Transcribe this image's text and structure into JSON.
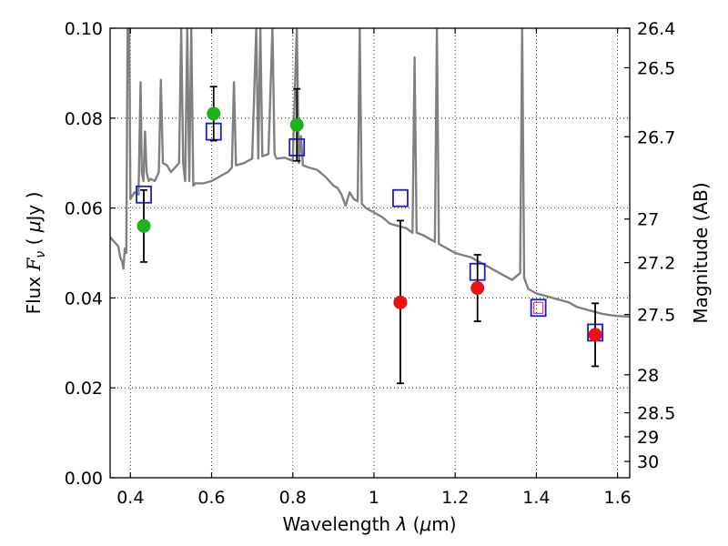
{
  "chart_data": {
    "type": "scatter",
    "xlabel": {
      "prefix": "Wavelength  ",
      "symbol": "λ",
      "unit_open": " (",
      "unit_mu": "μ",
      "unit_rest": "m)"
    },
    "ylabel": {
      "prefix": "Flux  ",
      "symbol": "F",
      "subscript": "ν",
      "unit_open": " ( ",
      "unit_mu": "μ",
      "unit_rest": "Jy )"
    },
    "y2label": "Magnitude (AB)",
    "xlim": [
      0.35,
      1.63
    ],
    "ylim": [
      0.0,
      0.1
    ],
    "x_ticks": [
      0.4,
      0.6,
      0.8,
      1.0,
      1.2,
      1.4,
      1.6
    ],
    "x_tick_labels": [
      "0.4",
      "0.6",
      "0.8",
      "1",
      "1.2",
      "1.4",
      "1.6"
    ],
    "y_ticks": [
      0.0,
      0.02,
      0.04,
      0.06,
      0.08,
      0.1
    ],
    "y_tick_labels": [
      "0.00",
      "0.02",
      "0.04",
      "0.06",
      "0.08",
      "0.10"
    ],
    "y2_ticks": [
      26.4,
      26.5,
      26.7,
      27,
      27.2,
      27.5,
      28,
      28.5,
      29,
      30
    ],
    "y2_tick_labels": [
      "26.4",
      "26.5",
      "26.7",
      "27",
      "27.2",
      "27.5",
      "28",
      "28.5",
      "29",
      "30"
    ],
    "grid": true,
    "colors": {
      "model": "#808080",
      "green_points": "#1db31d",
      "red_points": "#ee1111",
      "model_squares": "#1a1ad8",
      "errorbars": "#000000",
      "inner_square": "#cc2244"
    },
    "series": [
      {
        "kind": "line",
        "points": [
          [
            0.35,
            0.0535
          ],
          [
            0.36,
            0.0525
          ],
          [
            0.37,
            0.0515
          ],
          [
            0.375,
            0.049
          ],
          [
            0.38,
            0.048
          ],
          [
            0.383,
            0.0465
          ],
          [
            0.386,
            0.051
          ],
          [
            0.39,
            0.05
          ],
          [
            0.393,
            0.1
          ],
          [
            0.397,
            0.1
          ],
          [
            0.4,
            0.062
          ],
          [
            0.41,
            0.0635
          ],
          [
            0.42,
            0.063
          ],
          [
            0.425,
            0.088
          ],
          [
            0.428,
            0.068
          ],
          [
            0.432,
            0.066
          ],
          [
            0.436,
            0.077
          ],
          [
            0.44,
            0.068
          ],
          [
            0.445,
            0.066
          ],
          [
            0.45,
            0.0665
          ],
          [
            0.46,
            0.066
          ],
          [
            0.47,
            0.068
          ],
          [
            0.475,
            0.0885
          ],
          [
            0.48,
            0.07
          ],
          [
            0.49,
            0.0695
          ],
          [
            0.5,
            0.068
          ],
          [
            0.51,
            0.069
          ],
          [
            0.52,
            0.07
          ],
          [
            0.525,
            0.1
          ],
          [
            0.53,
            0.07
          ],
          [
            0.535,
            0.066
          ],
          [
            0.54,
            0.1
          ],
          [
            0.545,
            0.066
          ],
          [
            0.55,
            0.1
          ],
          [
            0.555,
            0.065
          ],
          [
            0.56,
            0.0655
          ],
          [
            0.58,
            0.0655
          ],
          [
            0.6,
            0.066
          ],
          [
            0.62,
            0.067
          ],
          [
            0.64,
            0.068
          ],
          [
            0.65,
            0.069
          ],
          [
            0.655,
            0.088
          ],
          [
            0.66,
            0.0695
          ],
          [
            0.68,
            0.07
          ],
          [
            0.7,
            0.071
          ],
          [
            0.71,
            0.1
          ],
          [
            0.715,
            0.071
          ],
          [
            0.72,
            0.1
          ],
          [
            0.725,
            0.0715
          ],
          [
            0.74,
            0.072
          ],
          [
            0.75,
            0.1
          ],
          [
            0.755,
            0.072
          ],
          [
            0.76,
            0.071
          ],
          [
            0.78,
            0.0712
          ],
          [
            0.8,
            0.0705
          ],
          [
            0.81,
            0.1
          ],
          [
            0.815,
            0.07
          ],
          [
            0.82,
            0.076
          ],
          [
            0.825,
            0.0695
          ],
          [
            0.84,
            0.069
          ],
          [
            0.86,
            0.0685
          ],
          [
            0.88,
            0.067
          ],
          [
            0.9,
            0.065
          ],
          [
            0.91,
            0.0645
          ],
          [
            0.92,
            0.063
          ],
          [
            0.93,
            0.0605
          ],
          [
            0.94,
            0.0635
          ],
          [
            0.95,
            0.062
          ],
          [
            0.96,
            0.0615
          ],
          [
            0.965,
            0.1
          ],
          [
            0.97,
            0.061
          ],
          [
            0.98,
            0.06
          ],
          [
            1.0,
            0.059
          ],
          [
            1.02,
            0.058
          ],
          [
            1.04,
            0.0565
          ],
          [
            1.06,
            0.056
          ],
          [
            1.08,
            0.0555
          ],
          [
            1.095,
            0.0545
          ],
          [
            1.1,
            0.0935
          ],
          [
            1.105,
            0.0545
          ],
          [
            1.12,
            0.054
          ],
          [
            1.14,
            0.053
          ],
          [
            1.15,
            0.0525
          ],
          [
            1.155,
            0.1
          ],
          [
            1.16,
            0.052
          ],
          [
            1.18,
            0.051
          ],
          [
            1.2,
            0.05
          ],
          [
            1.22,
            0.0495
          ],
          [
            1.24,
            0.049
          ],
          [
            1.26,
            0.048
          ],
          [
            1.28,
            0.047
          ],
          [
            1.3,
            0.046
          ],
          [
            1.32,
            0.045
          ],
          [
            1.34,
            0.044
          ],
          [
            1.36,
            0.0455
          ],
          [
            1.365,
            0.1
          ],
          [
            1.37,
            0.0445
          ],
          [
            1.38,
            0.042
          ],
          [
            1.4,
            0.041
          ],
          [
            1.42,
            0.0405
          ],
          [
            1.44,
            0.04
          ],
          [
            1.46,
            0.0395
          ],
          [
            1.48,
            0.039
          ],
          [
            1.5,
            0.038
          ],
          [
            1.52,
            0.0375
          ],
          [
            1.54,
            0.037
          ],
          [
            1.56,
            0.0365
          ],
          [
            1.58,
            0.0362
          ],
          [
            1.6,
            0.036
          ],
          [
            1.63,
            0.0358
          ]
        ]
      },
      {
        "kind": "scatter",
        "marker": "square",
        "points": [
          [
            0.433,
            0.063
          ],
          [
            0.605,
            0.077
          ],
          [
            0.81,
            0.0735
          ],
          [
            1.065,
            0.0622
          ],
          [
            1.255,
            0.0458
          ],
          [
            1.405,
            0.0378
          ],
          [
            1.545,
            0.0323
          ]
        ]
      },
      {
        "kind": "errorbar",
        "marker": "circle",
        "color_key": "green_points",
        "points": [
          {
            "x": 0.433,
            "y": 0.056,
            "ylo": 0.048,
            "yhi": 0.064
          },
          {
            "x": 0.605,
            "y": 0.081,
            "ylo": 0.075,
            "yhi": 0.087
          },
          {
            "x": 0.81,
            "y": 0.0785,
            "ylo": 0.0705,
            "yhi": 0.0865
          }
        ]
      },
      {
        "kind": "errorbar",
        "marker": "circle",
        "color_key": "red_points",
        "points": [
          {
            "x": 1.065,
            "y": 0.039,
            "ylo": 0.021,
            "yhi": 0.0572
          },
          {
            "x": 1.255,
            "y": 0.0422,
            "ylo": 0.0348,
            "yhi": 0.0496
          },
          {
            "x": 1.545,
            "y": 0.0318,
            "ylo": 0.0248,
            "yhi": 0.0388
          }
        ]
      }
    ]
  }
}
